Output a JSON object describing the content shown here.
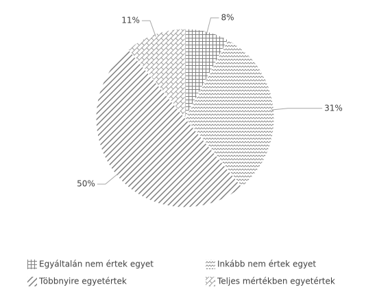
{
  "chart_data": {
    "type": "pie",
    "categories": [
      "Egyáltalán nem értek egyet",
      "Inkább nem értek egyet",
      "Többnyire egyetértek",
      "Teljes mértékben egyetértek"
    ],
    "values": [
      8,
      31,
      50,
      11
    ],
    "value_labels": [
      "8%",
      "31%",
      "50%",
      "11%"
    ],
    "patterns": [
      "grid",
      "wave",
      "diagonal",
      "brick"
    ],
    "color": "#7f7f7f",
    "legend": "bottom"
  }
}
